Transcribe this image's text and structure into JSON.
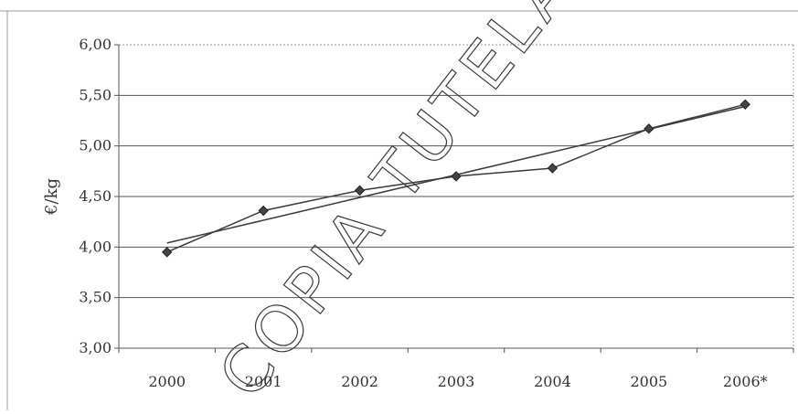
{
  "chart_data": {
    "type": "line",
    "title": "",
    "xlabel": "",
    "ylabel": "€/kg",
    "categories": [
      "2000",
      "2001",
      "2002",
      "2003",
      "2004",
      "2005",
      "2006*"
    ],
    "yticks": [
      "3,00",
      "3,50",
      "4,00",
      "4,50",
      "5,00",
      "5,50",
      "6,00"
    ],
    "ylim": [
      3.0,
      6.0
    ],
    "grid": true,
    "legend": "none",
    "series": [
      {
        "values": [
          3.95,
          4.36,
          4.56,
          4.7,
          4.78,
          5.17,
          5.41
        ],
        "marker": "diamond"
      }
    ],
    "trendline": {
      "type": "linear",
      "start": 4.04,
      "end": 5.39
    },
    "colors": {
      "line": "#3a3a3a",
      "grid": "#555555",
      "background": "#ffffff"
    }
  },
  "watermark": {
    "text": "COPIA TUTELATA DA GURITEL"
  }
}
